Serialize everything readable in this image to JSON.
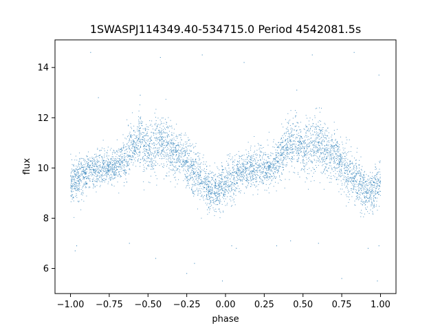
{
  "chart_data": {
    "type": "scatter",
    "title": "1SWASPJ114349.40-534715.0 Period 4542081.5s",
    "xlabel": "phase",
    "ylabel": "flux",
    "xlim": [
      -1.1,
      1.1
    ],
    "ylim": [
      5.0,
      15.1
    ],
    "xticks": [
      -1.0,
      -0.75,
      -0.5,
      -0.25,
      0.0,
      0.25,
      0.5,
      0.75,
      1.0
    ],
    "xtick_labels": [
      "−1.00",
      "−0.75",
      "−0.50",
      "−0.25",
      "0.00",
      "0.25",
      "0.50",
      "0.75",
      "1.00"
    ],
    "yticks": [
      6,
      8,
      10,
      12,
      14
    ],
    "ytick_labels": [
      "6",
      "8",
      "10",
      "12",
      "14"
    ],
    "grid": false,
    "legend": "none",
    "marker_color": "#1f77b4",
    "series": [
      {
        "x": [
          -1.0,
          -0.95,
          -0.9,
          -0.85,
          -0.8,
          -0.75,
          -0.7,
          -0.65,
          -0.6,
          -0.55,
          -0.5,
          -0.45,
          -0.4,
          -0.35,
          -0.3,
          -0.25,
          -0.2,
          -0.15,
          -0.1,
          -0.05,
          0.0,
          0.05,
          0.1,
          0.15,
          0.2,
          0.25,
          0.3,
          0.35,
          0.4,
          0.45,
          0.5,
          0.55,
          0.6,
          0.65,
          0.7,
          0.75,
          0.8,
          0.85,
          0.9,
          0.95,
          1.0
        ],
        "y": [
          9.4,
          9.6,
          9.8,
          9.9,
          10.0,
          10.0,
          10.1,
          10.4,
          10.9,
          11.1,
          10.6,
          10.9,
          11.0,
          10.6,
          10.5,
          10.2,
          9.8,
          9.4,
          9.1,
          9.1,
          9.4,
          9.6,
          9.8,
          9.9,
          10.0,
          10.0,
          10.1,
          10.4,
          10.9,
          11.1,
          10.6,
          10.9,
          11.0,
          10.6,
          10.5,
          10.2,
          9.8,
          9.4,
          9.1,
          9.1,
          9.4
        ],
        "spread": [
          0.7,
          0.7,
          0.6,
          0.6,
          0.6,
          0.6,
          0.6,
          0.7,
          0.8,
          0.9,
          0.8,
          1.0,
          1.0,
          0.8,
          0.8,
          0.8,
          0.8,
          0.8,
          0.7,
          0.7,
          0.7,
          0.7,
          0.6,
          0.6,
          0.6,
          0.6,
          0.6,
          0.7,
          0.8,
          0.9,
          0.8,
          1.0,
          1.0,
          0.8,
          0.8,
          0.8,
          0.8,
          0.8,
          0.7,
          0.7,
          0.7
        ]
      }
    ],
    "outliers": [
      [
        -0.97,
        6.7
      ],
      [
        -0.96,
        6.9
      ],
      [
        -0.87,
        14.6
      ],
      [
        -0.62,
        7.0
      ],
      [
        -0.45,
        6.4
      ],
      [
        -0.42,
        14.4
      ],
      [
        -0.25,
        5.8
      ],
      [
        -0.2,
        6.2
      ],
      [
        -0.15,
        14.5
      ],
      [
        -0.02,
        5.5
      ],
      [
        0.04,
        6.9
      ],
      [
        0.07,
        6.8
      ],
      [
        0.12,
        14.2
      ],
      [
        0.33,
        6.9
      ],
      [
        0.42,
        7.1
      ],
      [
        0.56,
        14.5
      ],
      [
        0.6,
        7.0
      ],
      [
        0.75,
        5.6
      ],
      [
        0.83,
        14.6
      ],
      [
        0.92,
        6.8
      ],
      [
        0.98,
        5.5
      ],
      [
        0.99,
        13.7
      ],
      [
        0.99,
        6.9
      ],
      [
        -0.82,
        12.8
      ],
      [
        0.46,
        13.1
      ],
      [
        -0.55,
        12.9
      ]
    ]
  }
}
